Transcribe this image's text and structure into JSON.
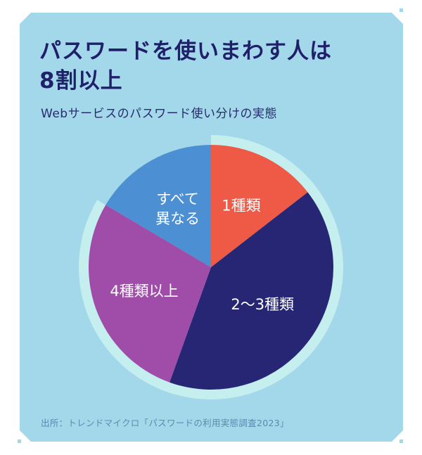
{
  "title_lines": [
    "パスワードを使いまわす人は",
    "8割以上"
  ],
  "subtitle": "Webサービスのパスワード使い分けの実態",
  "source": "出所：トレンドマイクロ「パスワードの利用実態調査2023」",
  "colors": {
    "background": "#a3d8ea",
    "ring": "#c4efee",
    "title": "#1f1f6a",
    "source": "#5a8bb0"
  },
  "chart_data": {
    "type": "pie",
    "start": "12 o'clock, clockwise",
    "slices": [
      {
        "label": "1種類",
        "value": 14.5,
        "color": "#ef5a47"
      },
      {
        "label": "2〜3種類",
        "value": 41.0,
        "color": "#272675"
      },
      {
        "label": "4種類以上",
        "value": 28.0,
        "color": "#a04ca9"
      },
      {
        "label": "すべて\n異なる",
        "value": 16.5,
        "color": "#4c8fd2"
      }
    ],
    "highlight_ring": "1種類 + 2〜3種類 + 4種類以上 (re-used passwords)"
  }
}
